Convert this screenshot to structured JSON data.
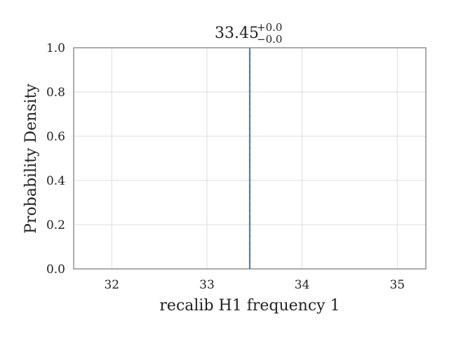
{
  "chart_data": {
    "type": "line",
    "title": {
      "value": "33.45",
      "upper_error": "+0.0",
      "lower_error": "−0.0"
    },
    "xlabel": "recalib H1 frequency 1",
    "ylabel": "Probability Density",
    "xlim": [
      31.6,
      35.3
    ],
    "ylim": [
      0.0,
      1.0
    ],
    "x_ticks": [
      32,
      33,
      34,
      35
    ],
    "x_tick_labels": [
      "32",
      "33",
      "34",
      "35"
    ],
    "y_ticks": [
      0.0,
      0.2,
      0.4,
      0.6,
      0.8,
      1.0
    ],
    "y_tick_labels": [
      "0.0",
      "0.2",
      "0.4",
      "0.6",
      "0.8",
      "1.0"
    ],
    "grid": true,
    "vertical_lines": [
      {
        "x": 33.45,
        "style": "solid",
        "color": "#4c72b0"
      },
      {
        "x": 33.45,
        "style": "dashed",
        "color": "#4c72b0"
      }
    ],
    "colors": {
      "line": "#4c72b0",
      "grid": "#dddddd",
      "frame": "#808080"
    }
  }
}
